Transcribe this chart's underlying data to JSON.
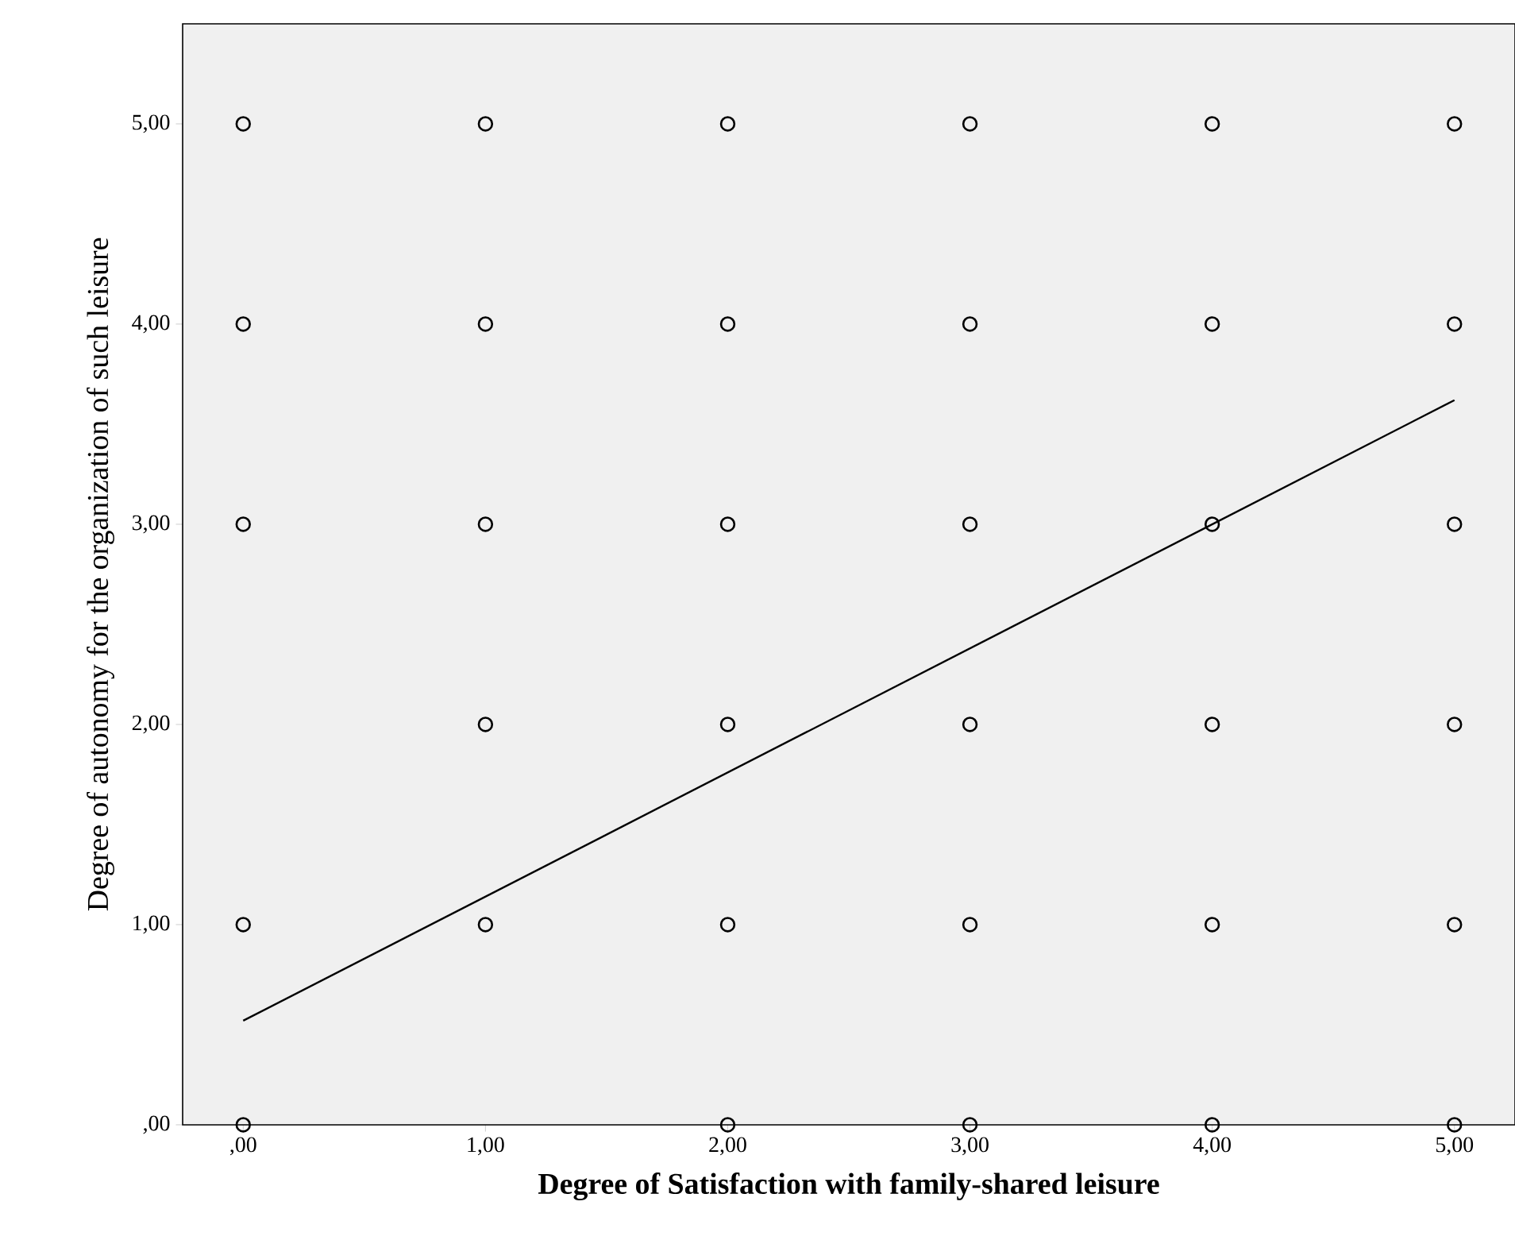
{
  "chart_data": {
    "type": "scatter",
    "xlabel": "Degree of Satisfaction with family-shared leisure",
    "ylabel": "Degree of autonomy for the organization of such leisure",
    "marker": "circle",
    "xlim": [
      -0.25,
      5.25
    ],
    "ylim": [
      0,
      5.5
    ],
    "xticks": [
      {
        "value": 0,
        "label": ",00"
      },
      {
        "value": 1,
        "label": "1,00"
      },
      {
        "value": 2,
        "label": "2,00"
      },
      {
        "value": 3,
        "label": "3,00"
      },
      {
        "value": 4,
        "label": "4,00"
      },
      {
        "value": 5,
        "label": "5,00"
      }
    ],
    "yticks": [
      {
        "value": 0,
        "label": ",00"
      },
      {
        "value": 1,
        "label": "1,00"
      },
      {
        "value": 2,
        "label": "2,00"
      },
      {
        "value": 3,
        "label": "3,00"
      },
      {
        "value": 4,
        "label": "4,00"
      },
      {
        "value": 5,
        "label": "5,00"
      }
    ],
    "series": [
      {
        "color": "#000000",
        "x": [
          0,
          0,
          0,
          0,
          0,
          1,
          1,
          1,
          1,
          1,
          2,
          2,
          2,
          2,
          2,
          2,
          3,
          3,
          3,
          3,
          3,
          3,
          4,
          4,
          4,
          4,
          4,
          4,
          5,
          5,
          5,
          5,
          5,
          5
        ],
        "values": [
          5,
          4,
          3,
          1,
          0,
          5,
          4,
          3,
          2,
          1,
          5,
          4,
          3,
          2,
          1,
          0,
          5,
          4,
          3,
          2,
          1,
          0,
          5,
          4,
          3,
          2,
          1,
          0,
          5,
          4,
          3,
          2,
          1,
          0
        ]
      },
      {
        "type": "line",
        "marker": "none",
        "color": "#000000",
        "x": [
          0,
          5
        ],
        "values": [
          0.52,
          3.62
        ]
      }
    ]
  }
}
